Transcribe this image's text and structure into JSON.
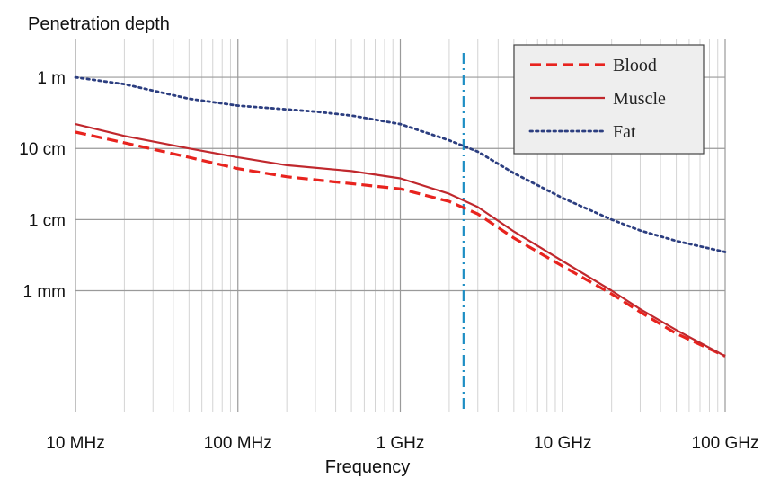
{
  "chart_data": {
    "type": "line",
    "ylabel": "Penetration depth",
    "xlabel": "Frequency",
    "xscale": "log",
    "yscale": "log",
    "xlim_hz": [
      10000000.0,
      100000000000.0
    ],
    "ylim_m": [
      2e-05,
      3.5
    ],
    "grid": true,
    "legend_position": "top-right",
    "x_ticks": [
      {
        "value": 10000000.0,
        "label": "10 MHz"
      },
      {
        "value": 100000000.0,
        "label": "100 MHz"
      },
      {
        "value": 1000000000.0,
        "label": "1 GHz"
      },
      {
        "value": 10000000000.0,
        "label": "10 GHz"
      },
      {
        "value": 100000000000.0,
        "label": "100 GHz"
      }
    ],
    "y_ticks": [
      {
        "value": 1,
        "label": "1 m"
      },
      {
        "value": 0.1,
        "label": "10 cm"
      },
      {
        "value": 0.01,
        "label": "1 cm"
      },
      {
        "value": 0.001,
        "label": "1 mm"
      }
    ],
    "vline_hz": 2450000000.0,
    "series": [
      {
        "name": "Blood",
        "color": "#e8231e",
        "style": "dashed",
        "points": [
          [
            10000000.0,
            0.17
          ],
          [
            20000000.0,
            0.12
          ],
          [
            50000000.0,
            0.075
          ],
          [
            100000000.0,
            0.052
          ],
          [
            200000000.0,
            0.04
          ],
          [
            500000000.0,
            0.032
          ],
          [
            1000000000.0,
            0.027
          ],
          [
            2000000000.0,
            0.018
          ],
          [
            3000000000.0,
            0.012
          ],
          [
            5000000000.0,
            0.0055
          ],
          [
            10000000000.0,
            0.0022
          ],
          [
            20000000000.0,
            0.0009
          ],
          [
            30000000000.0,
            0.0005
          ],
          [
            50000000000.0,
            0.00025
          ],
          [
            100000000000.0,
            0.00012
          ]
        ]
      },
      {
        "name": "Muscle",
        "color": "#c0282d",
        "style": "solid",
        "points": [
          [
            10000000.0,
            0.22
          ],
          [
            20000000.0,
            0.15
          ],
          [
            50000000.0,
            0.1
          ],
          [
            100000000.0,
            0.075
          ],
          [
            200000000.0,
            0.058
          ],
          [
            500000000.0,
            0.048
          ],
          [
            1000000000.0,
            0.038
          ],
          [
            2000000000.0,
            0.023
          ],
          [
            3000000000.0,
            0.015
          ],
          [
            5000000000.0,
            0.0068
          ],
          [
            10000000000.0,
            0.0026
          ],
          [
            20000000000.0,
            0.001
          ],
          [
            30000000000.0,
            0.00055
          ],
          [
            50000000000.0,
            0.00028
          ],
          [
            100000000000.0,
            0.00012
          ]
        ]
      },
      {
        "name": "Fat",
        "color": "#2c3e80",
        "style": "dotted",
        "points": [
          [
            10000000.0,
            1.0
          ],
          [
            20000000.0,
            0.8
          ],
          [
            50000000.0,
            0.5
          ],
          [
            100000000.0,
            0.4
          ],
          [
            300000000.0,
            0.33
          ],
          [
            500000000.0,
            0.29
          ],
          [
            1000000000.0,
            0.22
          ],
          [
            2000000000.0,
            0.13
          ],
          [
            3000000000.0,
            0.09
          ],
          [
            5000000000.0,
            0.045
          ],
          [
            10000000000.0,
            0.02
          ],
          [
            20000000000.0,
            0.01
          ],
          [
            30000000000.0,
            0.007
          ],
          [
            50000000000.0,
            0.005
          ],
          [
            100000000000.0,
            0.0035
          ]
        ]
      }
    ]
  }
}
